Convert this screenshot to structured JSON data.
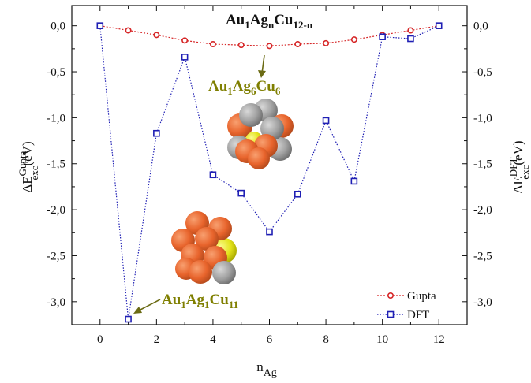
{
  "chart_data": {
    "type": "line",
    "title": {
      "main": "Au",
      "s1": "1",
      "mid": "Ag",
      "s2": "n",
      "end": "Cu",
      "s3": "12-n"
    },
    "xlabel": {
      "main": "n",
      "sub": "Ag"
    },
    "ylabel_left": {
      "pre": "ΔE",
      "sup": "Gupta",
      "sub": "exc",
      "post": "(eV)"
    },
    "ylabel_right": {
      "pre": "ΔE",
      "sup": "DFT",
      "sub": "exc",
      "post": "(eV)"
    },
    "xlim": [
      -1,
      13
    ],
    "ylim": [
      -3.25,
      0.22
    ],
    "xticks": [
      0,
      2,
      4,
      6,
      8,
      10,
      12
    ],
    "xtick_labels": [
      "0",
      "2",
      "4",
      "6",
      "8",
      "10",
      "12"
    ],
    "yticks": [
      0,
      -0.5,
      -1.0,
      -1.5,
      -2.0,
      -2.5,
      -3.0
    ],
    "ytick_labels": [
      "0,0",
      "-0,5",
      "-1,0",
      "-1,5",
      "-2,0",
      "-2,5",
      "-3,0"
    ],
    "grid": false,
    "legend_position": "bottom-right",
    "x": [
      0,
      1,
      2,
      3,
      4,
      5,
      6,
      7,
      8,
      9,
      10,
      11,
      12
    ],
    "series": [
      {
        "name": "Gupta",
        "marker": "circle",
        "color": "#d62728",
        "values": [
          0.0,
          -0.05,
          -0.1,
          -0.16,
          -0.2,
          -0.21,
          -0.22,
          -0.2,
          -0.19,
          -0.15,
          -0.1,
          -0.05,
          0.0
        ]
      },
      {
        "name": "DFT",
        "marker": "square",
        "color": "#1f1fb4",
        "values": [
          0.0,
          -3.19,
          -1.17,
          -0.34,
          -1.62,
          -1.82,
          -2.24,
          -1.83,
          -1.03,
          -1.69,
          -0.12,
          -0.14,
          0.0
        ]
      }
    ],
    "annotations": [
      {
        "main": "Au",
        "s1": "1",
        "mid": "Ag",
        "s2": "6",
        "end": "Cu",
        "s3": "6",
        "color": "#7f7f00"
      },
      {
        "main": "Au",
        "s1": "1",
        "mid": "Ag",
        "s2": "1",
        "end": "Cu",
        "s3": "11",
        "color": "#7f7f00"
      }
    ],
    "colors": {
      "copper": "#e8642c",
      "silver": "#a9a9a9",
      "gold": "#e3e31a"
    }
  }
}
